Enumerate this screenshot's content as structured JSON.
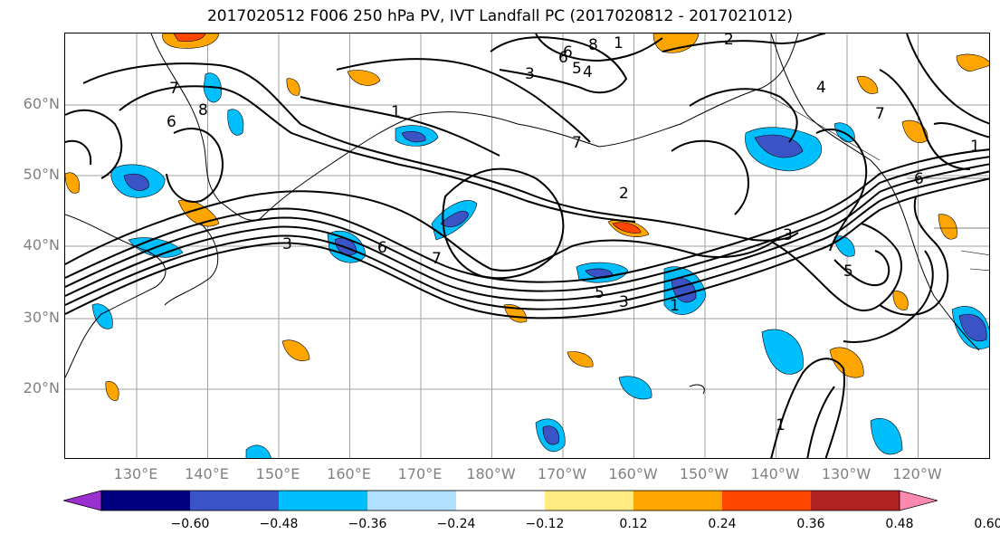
{
  "title": "2017020512 F006 250 hPa PV, IVT Landfall PC (2017020812 - 2017021012)",
  "lat_labels": [
    {
      "text": "60°N",
      "lat": 60
    },
    {
      "text": "50°N",
      "lat": 50
    },
    {
      "text": "40°N",
      "lat": 40
    },
    {
      "text": "30°N",
      "lat": 30
    },
    {
      "text": "20°N",
      "lat": 20
    }
  ],
  "lon_labels": [
    {
      "text": "130°E",
      "lon": 130
    },
    {
      "text": "140°E",
      "lon": 140
    },
    {
      "text": "150°E",
      "lon": 150
    },
    {
      "text": "160°E",
      "lon": 160
    },
    {
      "text": "170°E",
      "lon": 170
    },
    {
      "text": "180°W",
      "lon": 180
    },
    {
      "text": "170°W",
      "lon": 190
    },
    {
      "text": "160°W",
      "lon": 200
    },
    {
      "text": "150°W",
      "lon": 210
    },
    {
      "text": "140°W",
      "lon": 220
    },
    {
      "text": "130°W",
      "lon": 230
    },
    {
      "text": "120°W",
      "lon": 240
    }
  ],
  "colorbar": {
    "colors": [
      "#9b30d0",
      "#000080",
      "#3a54c8",
      "#00bfff",
      "#b0e0ff",
      "#ffffff",
      "#ffeb80",
      "#ffa500",
      "#ff4500",
      "#b22222",
      "#ff88b0"
    ],
    "ticks": [
      "−0.60",
      "−0.48",
      "−0.36",
      "−0.24",
      "−0.12",
      "0.12",
      "0.24",
      "0.36",
      "0.48",
      "0.60"
    ]
  },
  "contour_labels": [
    "2",
    "6",
    "8",
    "1",
    "6",
    "5",
    "4",
    "3",
    "7",
    "8",
    "6",
    "1",
    "7",
    "1",
    "2",
    "3",
    "6",
    "7",
    "5",
    "3",
    "1",
    "3",
    "4",
    "7",
    "6",
    "5",
    "1"
  ]
}
